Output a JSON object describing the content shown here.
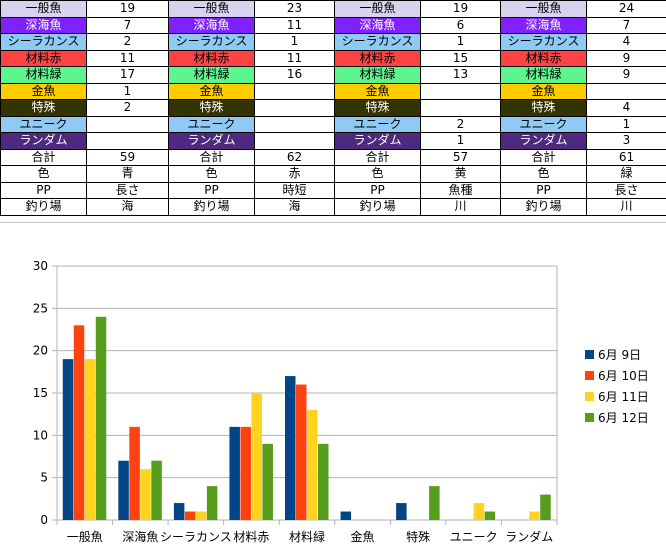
{
  "table": {
    "blocks": [
      {
        "rows": [
          [
            "一般魚",
            "19"
          ],
          [
            "深海魚",
            "7"
          ],
          [
            "シーラカンス",
            "2"
          ],
          [
            "材料赤",
            "11"
          ],
          [
            "材料緑",
            "17"
          ],
          [
            "金魚",
            "1"
          ],
          [
            "特殊",
            "2"
          ],
          [
            "ユニーク",
            ""
          ],
          [
            "ランダム",
            ""
          ],
          [
            "合計",
            "59"
          ],
          [
            "色",
            "青"
          ],
          [
            "PP",
            "長さ"
          ],
          [
            "釣り場",
            "海"
          ]
        ]
      },
      {
        "rows": [
          [
            "一般魚",
            "23"
          ],
          [
            "深海魚",
            "11"
          ],
          [
            "シーラカンス",
            "1"
          ],
          [
            "材料赤",
            "11"
          ],
          [
            "材料緑",
            "16"
          ],
          [
            "金魚",
            ""
          ],
          [
            "特殊",
            ""
          ],
          [
            "ユニーク",
            ""
          ],
          [
            "ランダム",
            ""
          ],
          [
            "合計",
            "62"
          ],
          [
            "色",
            "赤"
          ],
          [
            "PP",
            "時短"
          ],
          [
            "釣り場",
            "海"
          ]
        ]
      },
      {
        "rows": [
          [
            "一般魚",
            "19"
          ],
          [
            "深海魚",
            "6"
          ],
          [
            "シーラカンス",
            "1"
          ],
          [
            "材料赤",
            "15"
          ],
          [
            "材料緑",
            "13"
          ],
          [
            "金魚",
            ""
          ],
          [
            "特殊",
            ""
          ],
          [
            "ユニーク",
            "2"
          ],
          [
            "ランダム",
            "1"
          ],
          [
            "合計",
            "57"
          ],
          [
            "色",
            "黄"
          ],
          [
            "PP",
            "魚種"
          ],
          [
            "釣り場",
            "川"
          ]
        ]
      },
      {
        "rows": [
          [
            "一般魚",
            "24"
          ],
          [
            "深海魚",
            "7"
          ],
          [
            "シーラカンス",
            "4"
          ],
          [
            "材料赤",
            "9"
          ],
          [
            "材料緑",
            "9"
          ],
          [
            "金魚",
            ""
          ],
          [
            "特殊",
            "4"
          ],
          [
            "ユニーク",
            "1"
          ],
          [
            "ランダム",
            "3"
          ],
          [
            "合計",
            "61"
          ],
          [
            "色",
            "緑"
          ],
          [
            "PP",
            "長さ"
          ],
          [
            "釣り場",
            "川"
          ]
        ]
      }
    ],
    "row_colors": [
      "#d9d2ec",
      "#7f22ff",
      "#8ecaf4",
      "#ff4343",
      "#5cf58e",
      "#ffcc00",
      "#333300",
      "#8ecaf4",
      "#4d2a7f",
      "#ffffff",
      "#ffffff",
      "#ffffff",
      "#ffffff"
    ],
    "white_text_rows": [
      1,
      6,
      8
    ]
  },
  "chart_data": {
    "type": "bar",
    "categories": [
      "一般魚",
      "深海魚",
      "シーラカンス",
      "材料赤",
      "材料緑",
      "金魚",
      "特殊",
      "ユニーク",
      "ランダム"
    ],
    "series": [
      {
        "name": "6月 9日",
        "color": "#004586",
        "values": [
          19,
          7,
          2,
          11,
          17,
          1,
          2,
          0,
          0
        ]
      },
      {
        "name": "6月 10日",
        "color": "#ff420e",
        "values": [
          23,
          11,
          1,
          11,
          16,
          0,
          0,
          0,
          0
        ]
      },
      {
        "name": "6月 11日",
        "color": "#ffd320",
        "values": [
          19,
          6,
          1,
          15,
          13,
          0,
          0,
          2,
          1
        ]
      },
      {
        "name": "6月 12日",
        "color": "#579d1c",
        "values": [
          24,
          7,
          4,
          9,
          9,
          0,
          4,
          1,
          3
        ]
      }
    ],
    "ylim": [
      0,
      30
    ],
    "yticks": [
      0,
      5,
      10,
      15,
      20,
      25,
      30
    ],
    "grid": true,
    "legend": "right"
  }
}
